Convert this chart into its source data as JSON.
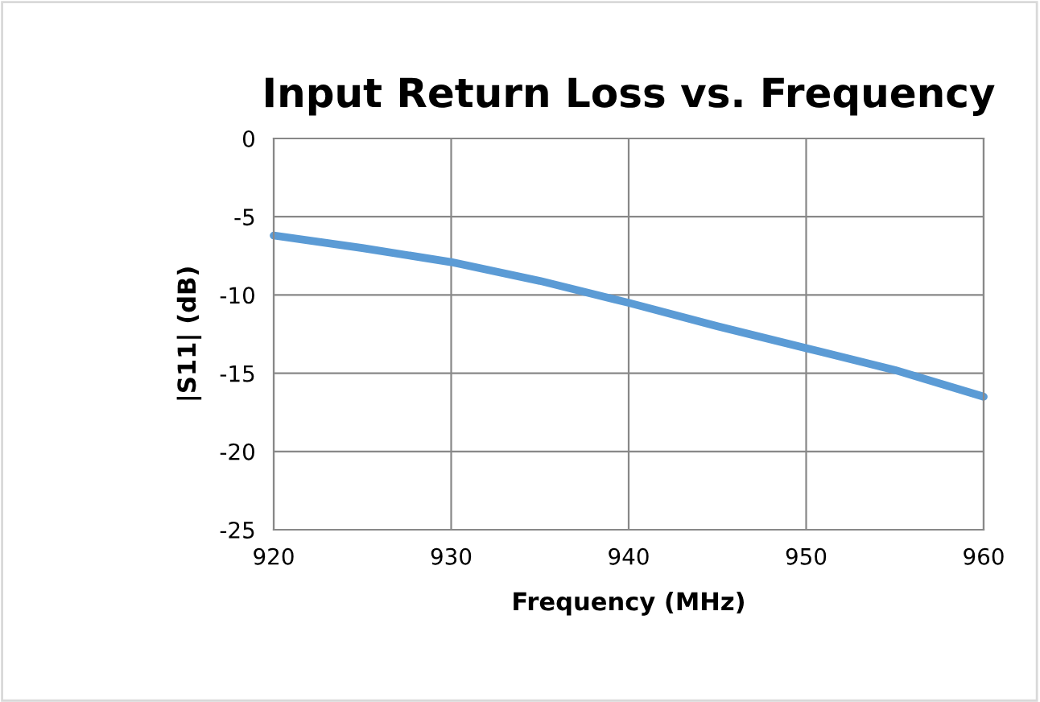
{
  "chart_data": {
    "type": "line",
    "title": "Input Return Loss vs. Frequency",
    "xlabel": "Frequency (MHz)",
    "ylabel": "|S11| (dB)",
    "x": [
      920,
      925,
      930,
      935,
      940,
      945,
      950,
      955,
      960
    ],
    "series": [
      {
        "color": "#5b9bd5",
        "values": [
          -6.2,
          -7.0,
          -7.9,
          -9.1,
          -10.5,
          -12.0,
          -13.4,
          -14.8,
          -16.5
        ]
      }
    ],
    "xlim": [
      920,
      960
    ],
    "xticks": [
      920,
      930,
      940,
      950,
      960
    ],
    "ylim": [
      -25,
      0
    ],
    "yticks": [
      -25,
      -20,
      -15,
      -10,
      -5,
      0
    ],
    "grid": true,
    "legend": false,
    "marker": "none",
    "line_style": "solid"
  }
}
